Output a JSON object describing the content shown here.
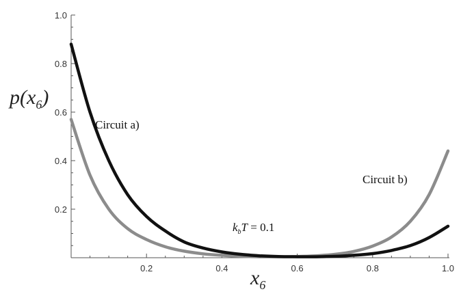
{
  "chart_data": {
    "type": "line",
    "title": "",
    "xlim": [
      0,
      1
    ],
    "ylim": [
      0,
      1
    ],
    "x_ticks": [
      "0.2",
      "0.4",
      "0.6",
      "0.8",
      "1.0"
    ],
    "y_ticks": [
      "0.2",
      "0.4",
      "0.6",
      "0.8",
      "1.0"
    ],
    "xlabel": {
      "main": "x",
      "sub": "6"
    },
    "ylabel": {
      "pre": "p(",
      "var": "x",
      "sub": "6",
      "post": ")"
    },
    "grid": false,
    "legend": "none",
    "series": [
      {
        "label": "Circuit a)",
        "color": "#111111",
        "points": [
          [
            0.0,
            0.88
          ],
          [
            0.05,
            0.6
          ],
          [
            0.1,
            0.4
          ],
          [
            0.15,
            0.26
          ],
          [
            0.2,
            0.17
          ],
          [
            0.25,
            0.11
          ],
          [
            0.3,
            0.065
          ],
          [
            0.35,
            0.04
          ],
          [
            0.4,
            0.024
          ],
          [
            0.45,
            0.014
          ],
          [
            0.5,
            0.008
          ],
          [
            0.55,
            0.005
          ],
          [
            0.6,
            0.004
          ],
          [
            0.65,
            0.004
          ],
          [
            0.7,
            0.006
          ],
          [
            0.75,
            0.01
          ],
          [
            0.8,
            0.017
          ],
          [
            0.85,
            0.03
          ],
          [
            0.9,
            0.05
          ],
          [
            0.95,
            0.083
          ],
          [
            1.0,
            0.13
          ]
        ]
      },
      {
        "label": "Circuit b)",
        "color": "#8c8c8c",
        "points": [
          [
            0.0,
            0.57
          ],
          [
            0.05,
            0.34
          ],
          [
            0.1,
            0.2
          ],
          [
            0.15,
            0.12
          ],
          [
            0.2,
            0.075
          ],
          [
            0.25,
            0.045
          ],
          [
            0.3,
            0.027
          ],
          [
            0.35,
            0.016
          ],
          [
            0.4,
            0.01
          ],
          [
            0.45,
            0.006
          ],
          [
            0.5,
            0.004
          ],
          [
            0.55,
            0.004
          ],
          [
            0.6,
            0.005
          ],
          [
            0.65,
            0.008
          ],
          [
            0.7,
            0.014
          ],
          [
            0.75,
            0.026
          ],
          [
            0.8,
            0.048
          ],
          [
            0.85,
            0.085
          ],
          [
            0.9,
            0.15
          ],
          [
            0.95,
            0.26
          ],
          [
            1.0,
            0.44
          ]
        ]
      }
    ],
    "annotation": {
      "pre": "k",
      "sub": "b",
      "var": "T",
      "post": " = 0.1"
    }
  }
}
